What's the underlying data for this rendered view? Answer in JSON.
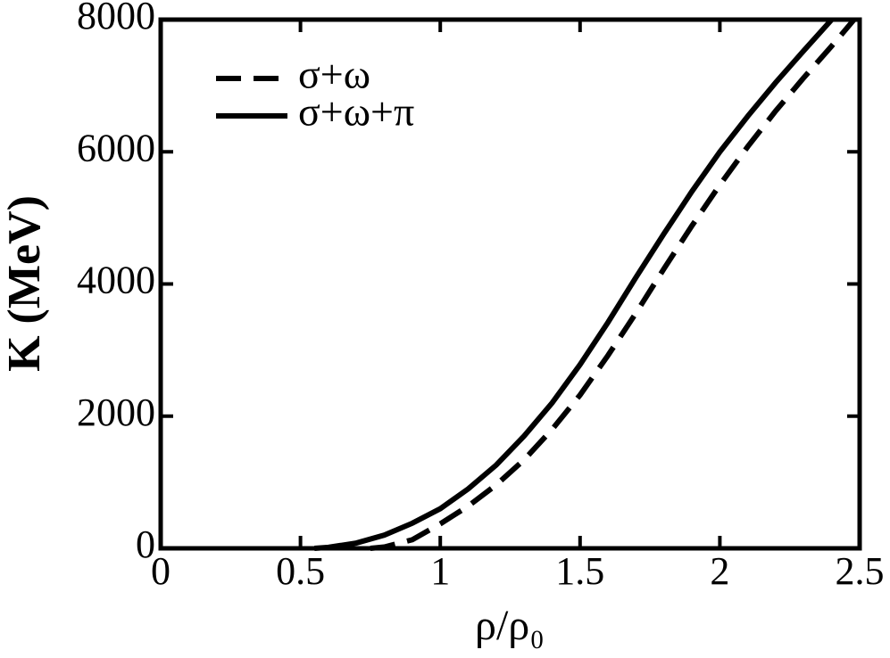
{
  "chart_data": {
    "type": "line",
    "xlabel": "ρ/ρ₀",
    "ylabel": "K (MeV)",
    "xlim": [
      0,
      2.5
    ],
    "ylim": [
      0,
      8000
    ],
    "xticks": [
      0,
      0.5,
      1,
      1.5,
      2,
      2.5
    ],
    "yticks": [
      0,
      2000,
      4000,
      6000,
      8000
    ],
    "legend": "upper-left",
    "series": [
      {
        "name": "σ+ω",
        "color": "#000000",
        "dash": true,
        "x": [
          0.75,
          0.8,
          0.9,
          1.0,
          1.1,
          1.2,
          1.3,
          1.4,
          1.5,
          1.6,
          1.7,
          1.8,
          1.9,
          2.0,
          2.1,
          2.2,
          2.3,
          2.4,
          2.48
        ],
        "values": [
          0,
          20,
          130,
          370,
          640,
          960,
          1340,
          1800,
          2320,
          2920,
          3560,
          4230,
          4880,
          5500,
          6080,
          6620,
          7120,
          7600,
          8000
        ]
      },
      {
        "name": "σ+ω+π",
        "color": "#000000",
        "dash": false,
        "x": [
          0.55,
          0.6,
          0.7,
          0.8,
          0.9,
          1.0,
          1.1,
          1.2,
          1.3,
          1.4,
          1.5,
          1.6,
          1.7,
          1.8,
          1.9,
          2.0,
          2.1,
          2.2,
          2.3,
          2.4
        ],
        "values": [
          0,
          15,
          80,
          200,
          380,
          600,
          900,
          1260,
          1700,
          2200,
          2780,
          3420,
          4100,
          4760,
          5400,
          6000,
          6540,
          7050,
          7530,
          8000
        ]
      }
    ]
  }
}
